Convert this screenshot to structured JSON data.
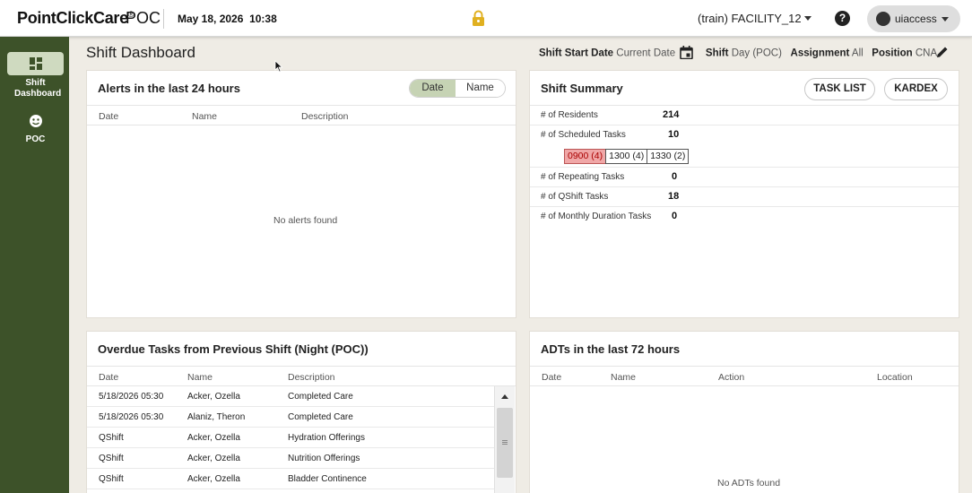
{
  "topbar": {
    "brand": "PointClickCare",
    "brand_mark": "®",
    "product": "POC",
    "date": "May 18, 2026",
    "time": "10:38",
    "facility": "(train) FACILITY_12",
    "help": "?",
    "user": "uiaccess"
  },
  "sidebar": {
    "items": [
      {
        "label": "Shift Dashboard",
        "icon": "dashboard-icon"
      },
      {
        "label": "POC",
        "icon": "face-icon"
      }
    ]
  },
  "header": {
    "title": "Shift Dashboard",
    "shift_start_label": "Shift Start Date",
    "shift_start_value": "Current Date",
    "shift_label": "Shift",
    "shift_value": "Day (POC)",
    "assignment_label": "Assignment",
    "assignment_value": "All",
    "position_label": "Position",
    "position_value": "CNA"
  },
  "alerts": {
    "title": "Alerts in the last 24 hours",
    "toggle": [
      "Date",
      "Name"
    ],
    "columns": [
      "Date",
      "Name",
      "Description"
    ],
    "empty": "No alerts found"
  },
  "shift_summary": {
    "title": "Shift Summary",
    "buttons": [
      "TASK LIST",
      "KARDEX"
    ],
    "rows": [
      {
        "label": "# of Residents",
        "value": "214"
      },
      {
        "label": "# of Scheduled Tasks",
        "value": "10"
      },
      {
        "label": "# of Repeating Tasks",
        "value": "0"
      },
      {
        "label": "# of QShift Tasks",
        "value": "18"
      },
      {
        "label": "# of Monthly Duration Tasks",
        "value": "0"
      }
    ],
    "slots": [
      "0900  (4)",
      "1300  (4)",
      "1330  (2)"
    ]
  },
  "overdue": {
    "title": "Overdue Tasks from Previous Shift (Night (POC))",
    "columns": [
      "Date",
      "Name",
      "Description"
    ],
    "rows": [
      [
        "5/18/2026 05:30",
        "Acker, Ozella",
        "Completed Care"
      ],
      [
        "5/18/2026 05:30",
        "Alaniz, Theron",
        "Completed Care"
      ],
      [
        "QShift",
        "Acker, Ozella",
        "Hydration Offerings"
      ],
      [
        "QShift",
        "Acker, Ozella",
        "Nutrition Offerings"
      ],
      [
        "QShift",
        "Acker, Ozella",
        "Bladder Continence"
      ]
    ]
  },
  "adts": {
    "title": "ADTs in the last 72 hours",
    "columns": [
      "Date",
      "Name",
      "Action",
      "Location"
    ],
    "empty": "No ADTs found"
  },
  "colors": {
    "sidebar": "#3d5229",
    "accent_toggle": "#c6d3b4",
    "slot_alert": "#f0a7a7",
    "lock": "#e0b020"
  }
}
